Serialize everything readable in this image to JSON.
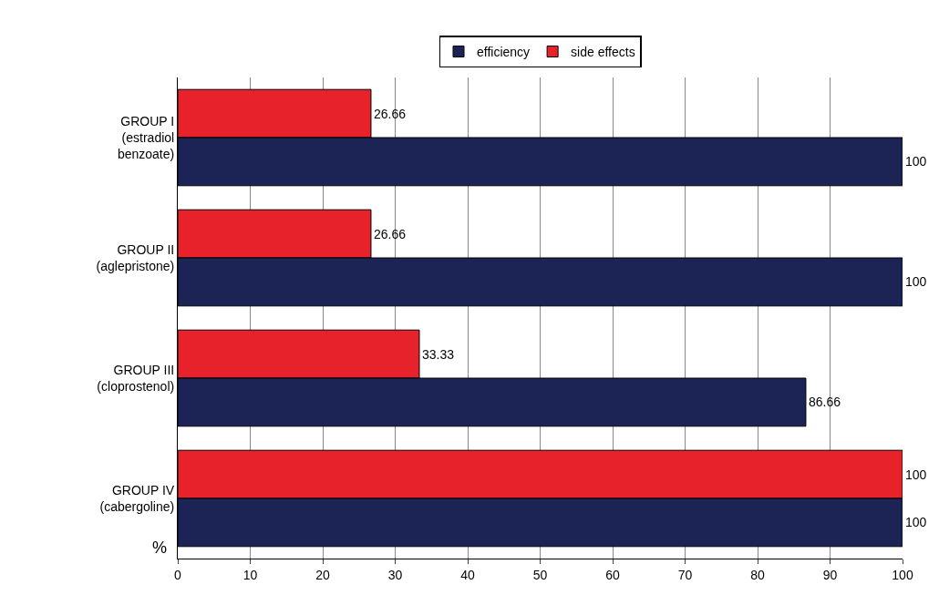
{
  "chart_data": {
    "type": "bar",
    "orientation": "horizontal",
    "xlabel": "%",
    "categories": [
      "GROUP I\n(estradiol\nbenzoate)",
      "GROUP II\n(aglepristone)",
      "GROUP III\n(cloprostenol)",
      "GROUP IV\n(cabergoline)"
    ],
    "series": [
      {
        "name": "efficiency",
        "color": "#1c2456",
        "values": [
          100,
          100,
          86.66,
          100
        ]
      },
      {
        "name": "side effects",
        "color": "#e8222a",
        "values": [
          26.66,
          26.66,
          33.33,
          100
        ]
      }
    ],
    "xlim": [
      0,
      100
    ],
    "xticks": [
      0,
      10,
      20,
      30,
      40,
      50,
      60,
      70,
      80,
      90,
      100
    ],
    "grid": "x",
    "legend": "top",
    "data_labels": true
  }
}
